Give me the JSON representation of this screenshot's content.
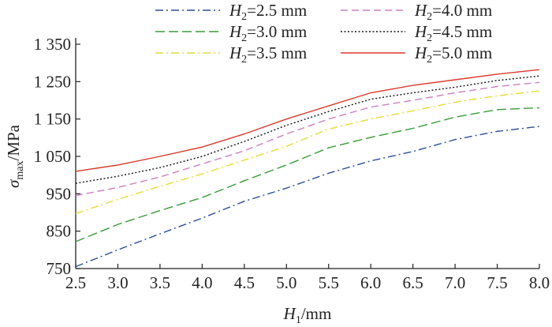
{
  "chart_data": {
    "type": "line",
    "title": "",
    "xlabel": "H1/mm",
    "ylabel": "σmax/MPa",
    "x": [
      2.5,
      3.0,
      3.5,
      4.0,
      4.5,
      5.0,
      5.5,
      6.0,
      6.5,
      7.0,
      7.5,
      8.0
    ],
    "x_tick_labels": [
      "2.5",
      "3.0",
      "3.5",
      "4.0",
      "4.5",
      "5.0",
      "5.5",
      "6.0",
      "6.5",
      "7.0",
      "7.5",
      "8.0"
    ],
    "y_ticks": [
      750,
      850,
      950,
      1050,
      1150,
      1250,
      1350
    ],
    "y_tick_labels": [
      "750",
      "850",
      "950",
      "1 050",
      "1 150",
      "1 250",
      "1 350"
    ],
    "xlim": [
      2.5,
      8.0
    ],
    "ylim": [
      750,
      1350
    ],
    "grid": false,
    "legend_position": "top",
    "series": [
      {
        "name": "H2=2.5 mm",
        "style": "dashdot",
        "color": "#2f4f9a",
        "values": [
          755,
          800,
          843,
          885,
          930,
          965,
          1005,
          1038,
          1063,
          1095,
          1117,
          1130
        ]
      },
      {
        "name": "H2=3.0 mm",
        "style": "longdash",
        "color": "#3a9a3a",
        "values": [
          822,
          868,
          905,
          940,
          985,
          1027,
          1073,
          1101,
          1125,
          1155,
          1175,
          1180
        ]
      },
      {
        "name": "H2=3.5 mm",
        "style": "dashdot",
        "color": "#e3dc3a",
        "values": [
          897,
          935,
          970,
          1003,
          1040,
          1077,
          1123,
          1150,
          1172,
          1195,
          1212,
          1225
        ]
      },
      {
        "name": "H2=4.0 mm",
        "style": "dashed",
        "color": "#c980c0",
        "values": [
          945,
          967,
          995,
          1030,
          1065,
          1110,
          1150,
          1182,
          1200,
          1220,
          1237,
          1248
        ]
      },
      {
        "name": "H2=4.5 mm",
        "style": "dotted",
        "color": "#111111",
        "values": [
          978,
          997,
          1020,
          1050,
          1090,
          1133,
          1170,
          1203,
          1220,
          1235,
          1253,
          1265
        ]
      },
      {
        "name": "H2=5.0 mm",
        "style": "solid",
        "color": "#d93a2b",
        "values": [
          1010,
          1027,
          1050,
          1075,
          1110,
          1150,
          1185,
          1220,
          1240,
          1255,
          1270,
          1282
        ]
      }
    ]
  }
}
